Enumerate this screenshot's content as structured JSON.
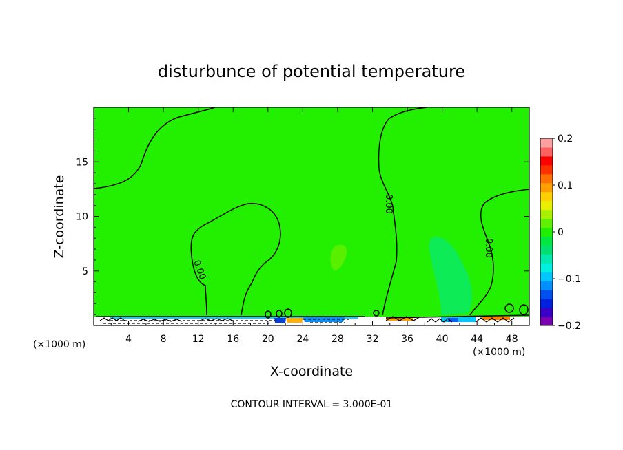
{
  "chart_data": {
    "type": "heatmap",
    "title": "disturbunce of potential temperature",
    "xlabel": "X-coordinate",
    "ylabel": "Z-coordinate",
    "x_unit_left": "(×1000 m)",
    "x_unit_right": "(×1000 m)",
    "footer": "CONTOUR INTERVAL = 3.000E-01",
    "xlim": [
      0,
      50
    ],
    "ylim": [
      0,
      20
    ],
    "x_ticks": [
      4,
      8,
      12,
      16,
      20,
      24,
      28,
      32,
      36,
      40,
      44,
      48
    ],
    "y_ticks": [
      5,
      10,
      15
    ],
    "colorbar": {
      "range": [
        -0.2,
        0.2
      ],
      "tick_values": [
        0.2,
        0.1,
        0,
        -0.1,
        -0.2
      ],
      "tick_labels": [
        "0.2",
        "0.1",
        "0",
        "−0.1",
        "−0.2"
      ],
      "colors": [
        "#7a00b0",
        "#3a00c8",
        "#0020e0",
        "#0050f0",
        "#0090ff",
        "#00c8ff",
        "#00f0e0",
        "#00e8b0",
        "#00e070",
        "#00e840",
        "#20f000",
        "#60f000",
        "#a8f000",
        "#e8f000",
        "#ffd000",
        "#ffa000",
        "#ff7000",
        "#ff3000",
        "#ff0000",
        "#ff6060",
        "#ffa0a0"
      ]
    },
    "background_color": "#22f000",
    "contour_labels": [
      "0.00",
      "0.00",
      "0.00"
    ]
  }
}
